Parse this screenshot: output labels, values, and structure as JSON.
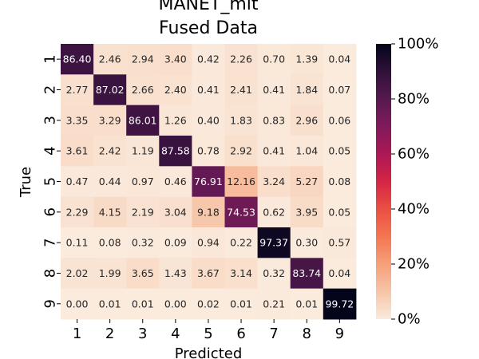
{
  "chart_data": {
    "type": "heatmap",
    "title_lines": [
      "MANET_mit",
      "Fused Data"
    ],
    "xlabel": "Predicted",
    "ylabel": "True",
    "x_categories": [
      "1",
      "2",
      "3",
      "4",
      "5",
      "6",
      "7",
      "8",
      "9"
    ],
    "y_categories": [
      "1",
      "2",
      "3",
      "4",
      "5",
      "6",
      "7",
      "8",
      "9"
    ],
    "values": [
      [
        86.4,
        2.46,
        2.94,
        3.4,
        0.42,
        2.26,
        0.7,
        1.39,
        0.04
      ],
      [
        2.77,
        87.02,
        2.66,
        2.4,
        0.41,
        2.41,
        0.41,
        1.84,
        0.07
      ],
      [
        3.35,
        3.29,
        86.01,
        1.26,
        0.4,
        1.83,
        0.83,
        2.96,
        0.06
      ],
      [
        3.61,
        2.42,
        1.19,
        87.58,
        0.78,
        2.92,
        0.41,
        1.04,
        0.05
      ],
      [
        0.47,
        0.44,
        0.97,
        0.46,
        76.91,
        12.16,
        3.24,
        5.27,
        0.08
      ],
      [
        2.29,
        4.15,
        2.19,
        3.04,
        9.18,
        74.53,
        0.62,
        3.95,
        0.05
      ],
      [
        0.11,
        0.08,
        0.32,
        0.09,
        0.94,
        0.22,
        97.37,
        0.3,
        0.57
      ],
      [
        2.02,
        1.99,
        3.65,
        1.43,
        3.67,
        3.14,
        0.32,
        83.74,
        0.04
      ],
      [
        0.0,
        0.01,
        0.01,
        0.0,
        0.02,
        0.01,
        0.21,
        0.01,
        99.72
      ]
    ],
    "value_format": "2 decimals",
    "colorbar": {
      "range": [
        0,
        100
      ],
      "tick_labels": [
        "0%",
        "20%",
        "40%",
        "60%",
        "80%",
        "100%"
      ],
      "tick_values": [
        0,
        20,
        40,
        60,
        80,
        100
      ],
      "colormap": "rocket_r"
    },
    "grid": false,
    "legend": "colorbar-right"
  }
}
